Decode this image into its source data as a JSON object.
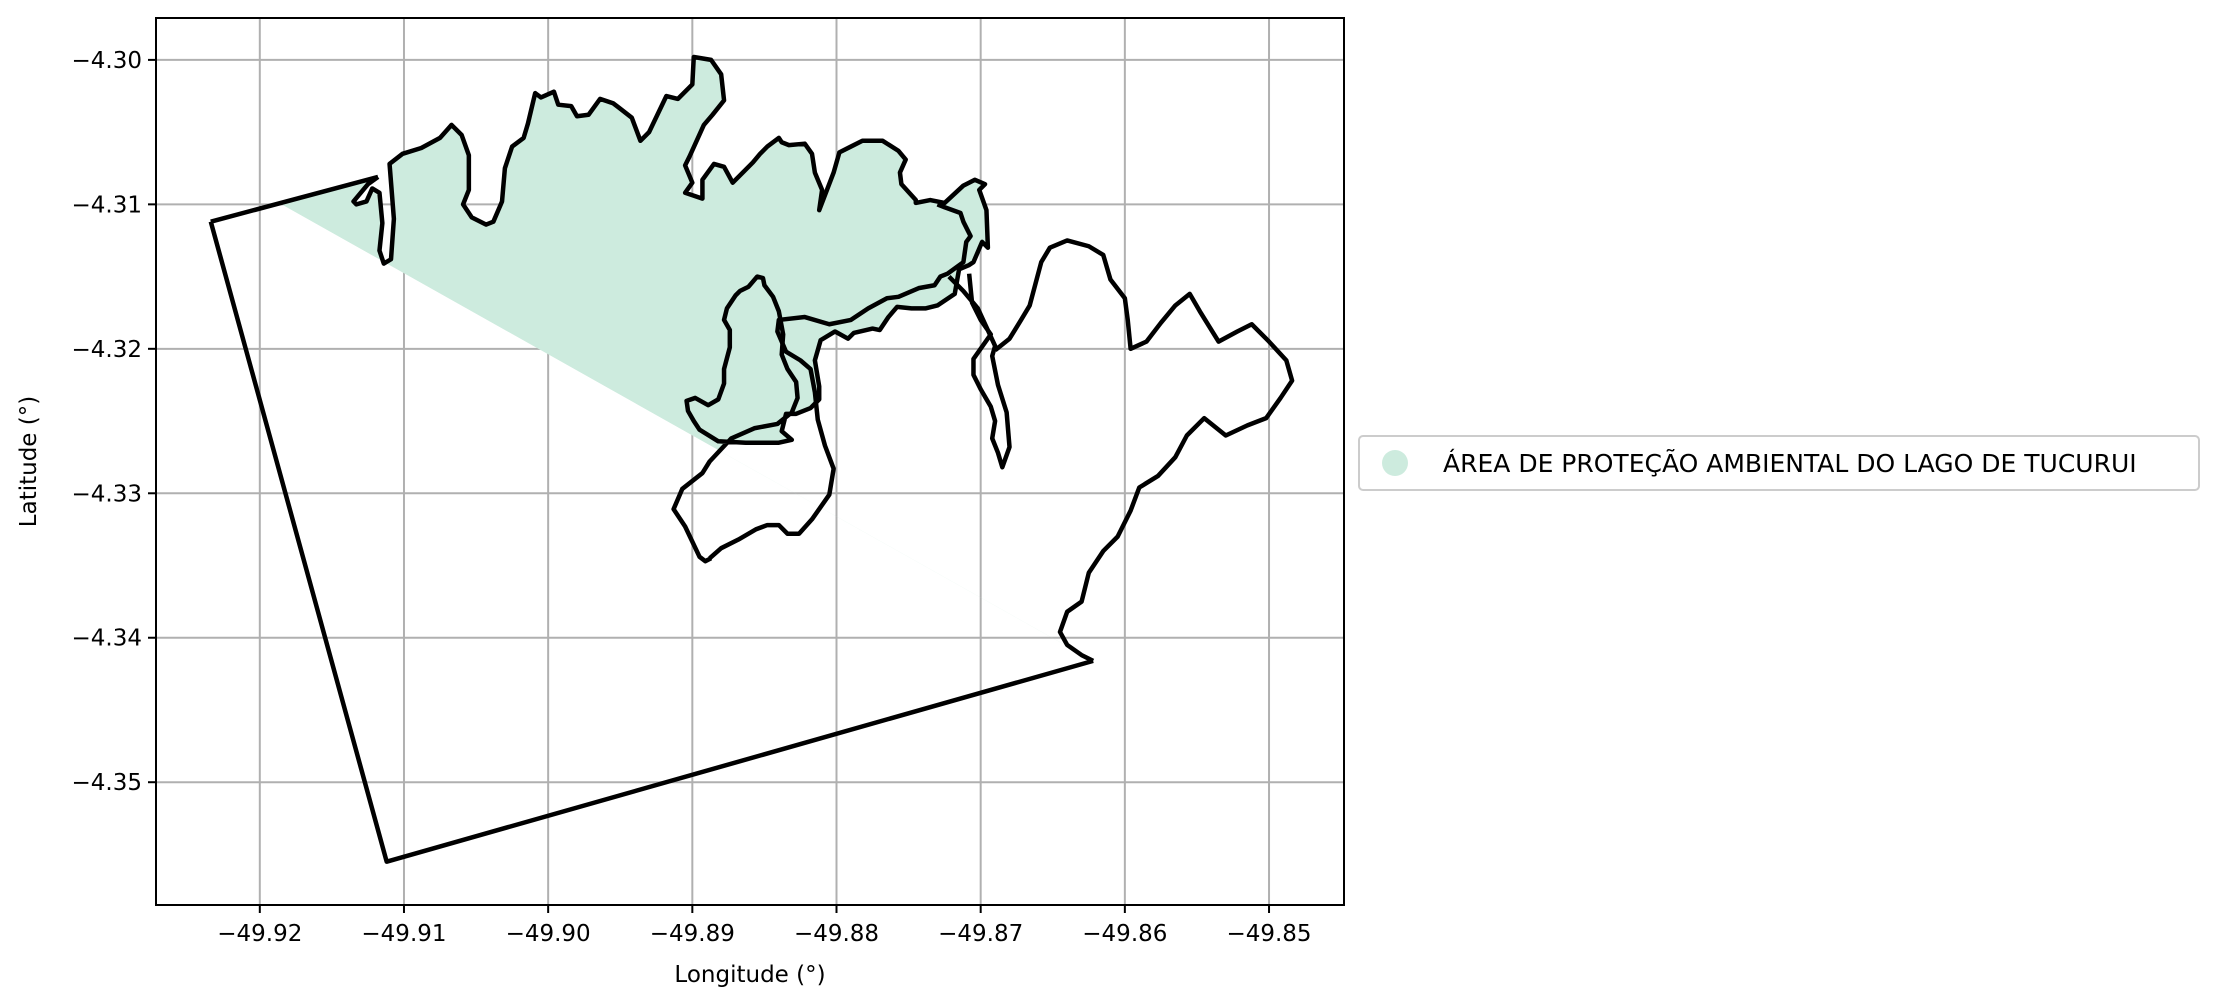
{
  "chart_data": {
    "type": "map",
    "xlabel": "Longitude (°)",
    "ylabel": "Latitude (°)",
    "xlim": [
      -49.9272,
      -49.8448
    ],
    "ylim": [
      -4.3585,
      -4.2971
    ],
    "grid": true,
    "x_ticks": [
      -49.92,
      -49.91,
      -49.9,
      -49.89,
      -49.88,
      -49.87,
      -49.86,
      -49.85
    ],
    "x_tick_labels": [
      "−49.92",
      "−49.91",
      "−49.90",
      "−49.89",
      "−49.88",
      "−49.87",
      "−49.86",
      "−49.85"
    ],
    "y_ticks": [
      -4.3,
      -4.31,
      -4.32,
      -4.33,
      -4.34,
      -4.35
    ],
    "y_tick_labels": [
      "−4.30",
      "−4.31",
      "−4.32",
      "−4.33",
      "−4.34",
      "−4.35"
    ],
    "legend": {
      "placement": "center-right-outside",
      "entries": [
        {
          "label": "ÁREA DE PROTEÇÃO AMBIENTAL DO LAGO DE TUCURUI",
          "color": "#cdebde",
          "marker": "circle"
        }
      ]
    },
    "fill_color": "#cdebde",
    "outline_color": "#000000",
    "boundary_polygon": [
      [
        -49.9234,
        -4.3112
      ],
      [
        -49.9118,
        -4.3081
      ],
      [
        -49.9112,
        -4.3555
      ],
      [
        -49.8622,
        -4.3416
      ]
    ],
    "boundary_polygon_order": [
      [
        -49.9234,
        -4.3112
      ],
      [
        -49.9118,
        -4.3081
      ],
      [
        -49.9112,
        -4.3555
      ],
      [
        -49.8622,
        -4.3416
      ]
    ],
    "protected_area_polygon": [
      [
        -49.9185,
        -4.31
      ],
      [
        -49.9118,
        -4.3081
      ],
      [
        -49.8622,
        -4.3416
      ]
    ],
    "coastline": [
      [
        -49.9118,
        -4.3081
      ],
      [
        -49.9125,
        -4.3086
      ],
      [
        -49.9135,
        -4.3098
      ],
      [
        -49.9133,
        -4.31
      ],
      [
        -49.9126,
        -4.3098
      ],
      [
        -49.9122,
        -4.3089
      ],
      [
        -49.9117,
        -4.3092
      ],
      [
        -49.9115,
        -4.3113
      ],
      [
        -49.9117,
        -4.3132
      ],
      [
        -49.9114,
        -4.3141
      ],
      [
        -49.9109,
        -4.3138
      ],
      [
        -49.9107,
        -4.311
      ],
      [
        -49.911,
        -4.3072
      ],
      [
        -49.9101,
        -4.3065
      ],
      [
        -49.9088,
        -4.3061
      ],
      [
        -49.9075,
        -4.3054
      ],
      [
        -49.9067,
        -4.3045
      ],
      [
        -49.906,
        -4.3052
      ],
      [
        -49.9055,
        -4.3066
      ],
      [
        -49.9055,
        -4.309
      ],
      [
        -49.9059,
        -4.31
      ],
      [
        -49.9053,
        -4.3109
      ],
      [
        -49.9043,
        -4.3114
      ],
      [
        -49.9038,
        -4.3112
      ],
      [
        -49.9032,
        -4.3098
      ],
      [
        -49.903,
        -4.3075
      ],
      [
        -49.9025,
        -4.306
      ],
      [
        -49.9017,
        -4.3054
      ],
      [
        -49.9014,
        -4.3044
      ],
      [
        -49.9009,
        -4.3023
      ],
      [
        -49.9005,
        -4.3026
      ],
      [
        -49.8996,
        -4.3022
      ],
      [
        -49.8993,
        -4.3031
      ],
      [
        -49.8984,
        -4.3032
      ],
      [
        -49.898,
        -4.3039
      ],
      [
        -49.8972,
        -4.3038
      ],
      [
        -49.8964,
        -4.3027
      ],
      [
        -49.8955,
        -4.303
      ],
      [
        -49.8951,
        -4.3033
      ],
      [
        -49.8942,
        -4.304
      ],
      [
        -49.8936,
        -4.3056
      ],
      [
        -49.893,
        -4.305
      ],
      [
        -49.8918,
        -4.3025
      ],
      [
        -49.891,
        -4.3027
      ],
      [
        -49.89,
        -4.3017
      ],
      [
        -49.8899,
        -4.2998
      ],
      [
        -49.8887,
        -4.3
      ],
      [
        -49.888,
        -4.301
      ],
      [
        -49.8878,
        -4.3028
      ],
      [
        -49.8886,
        -4.3038
      ],
      [
        -49.8892,
        -4.3045
      ],
      [
        -49.8902,
        -4.3067
      ],
      [
        -49.8905,
        -4.3073
      ],
      [
        -49.89,
        -4.3085
      ],
      [
        -49.8905,
        -4.3092
      ],
      [
        -49.8893,
        -4.3096
      ],
      [
        -49.8893,
        -4.3083
      ],
      [
        -49.8885,
        -4.3072
      ],
      [
        -49.8878,
        -4.3074
      ],
      [
        -49.8872,
        -4.3085
      ],
      [
        -49.8858,
        -4.3071
      ],
      [
        -49.8853,
        -4.3065
      ],
      [
        -49.8848,
        -4.306
      ],
      [
        -49.884,
        -4.3054
      ],
      [
        -49.8838,
        -4.3057
      ],
      [
        -49.8833,
        -4.3059
      ],
      [
        -49.8822,
        -4.3058
      ],
      [
        -49.8817,
        -4.3065
      ],
      [
        -49.8815,
        -4.3078
      ],
      [
        -49.881,
        -4.309
      ],
      [
        -49.8812,
        -4.3104
      ],
      [
        -49.8802,
        -4.3078
      ],
      [
        -49.8798,
        -4.3064
      ],
      [
        -49.879,
        -4.306
      ],
      [
        -49.8782,
        -4.3056
      ],
      [
        -49.8768,
        -4.3056
      ],
      [
        -49.8757,
        -4.3063
      ],
      [
        -49.8752,
        -4.3069
      ],
      [
        -49.8756,
        -4.3078
      ],
      [
        -49.8755,
        -4.3086
      ],
      [
        -49.8745,
        -4.3097
      ],
      [
        -49.8745,
        -4.3099
      ],
      [
        -49.8735,
        -4.3097
      ],
      [
        -49.8725,
        -4.3099
      ],
      [
        -49.8712,
        -4.3087
      ],
      [
        -49.8704,
        -4.3083
      ],
      [
        -49.8697,
        -4.3086
      ],
      [
        -49.8701,
        -4.309
      ],
      [
        -49.8696,
        -4.3104
      ],
      [
        -49.8695,
        -4.313
      ],
      [
        -49.8699,
        -4.3126
      ],
      [
        -49.8705,
        -4.314
      ],
      [
        -49.8708,
        -4.3142
      ],
      [
        -49.8715,
        -4.3145
      ],
      [
        -49.8718,
        -4.3162
      ],
      [
        -49.873,
        -4.317
      ],
      [
        -49.8738,
        -4.3172
      ],
      [
        -49.8748,
        -4.3172
      ],
      [
        -49.8758,
        -4.3171
      ],
      [
        -49.8764,
        -4.3178
      ],
      [
        -49.877,
        -4.3187
      ],
      [
        -49.8775,
        -4.3186
      ],
      [
        -49.8788,
        -4.3189
      ],
      [
        -49.8792,
        -4.3193
      ],
      [
        -49.8801,
        -4.3188
      ],
      [
        -49.8811,
        -4.3194
      ],
      [
        -49.8815,
        -4.3208
      ],
      [
        -49.8812,
        -4.3226
      ],
      [
        -49.8812,
        -4.3235
      ],
      [
        -49.8818,
        -4.3241
      ],
      [
        -49.8828,
        -4.3245
      ],
      [
        -49.8835,
        -4.3245
      ],
      [
        -49.8838,
        -4.3257
      ],
      [
        -49.8831,
        -4.3263
      ],
      [
        -49.884,
        -4.3265
      ],
      [
        -49.885,
        -4.3265
      ],
      [
        -49.8863,
        -4.3265
      ],
      [
        -49.8882,
        -4.3264
      ],
      [
        -49.8895,
        -4.3256
      ],
      [
        -49.8899,
        -4.325
      ],
      [
        -49.8903,
        -4.3243
      ],
      [
        -49.8904,
        -4.3236
      ],
      [
        -49.8898,
        -4.3234
      ],
      [
        -49.8889,
        -4.3239
      ],
      [
        -49.8882,
        -4.3235
      ],
      [
        -49.8878,
        -4.3224
      ],
      [
        -49.8878,
        -4.3214
      ],
      [
        -49.8874,
        -4.3199
      ],
      [
        -49.8874,
        -4.3187
      ],
      [
        -49.8878,
        -4.318
      ],
      [
        -49.8876,
        -4.3172
      ],
      [
        -49.887,
        -4.3163
      ],
      [
        -49.8867,
        -4.316
      ],
      [
        -49.8861,
        -4.3157
      ],
      [
        -49.8855,
        -4.315
      ],
      [
        -49.8851,
        -4.3151
      ],
      [
        -49.885,
        -4.3156
      ],
      [
        -49.8844,
        -4.3164
      ],
      [
        -49.884,
        -4.3174
      ],
      [
        -49.8837,
        -4.319
      ],
      [
        -49.8838,
        -4.3204
      ],
      [
        -49.8834,
        -4.3214
      ],
      [
        -49.8828,
        -4.3223
      ],
      [
        -49.8827,
        -4.3234
      ],
      [
        -49.8831,
        -4.3244
      ],
      [
        -49.8841,
        -4.3252
      ],
      [
        -49.8857,
        -4.3255
      ],
      [
        -49.8873,
        -4.3262
      ],
      [
        -49.8888,
        -4.3278
      ],
      [
        -49.8893,
        -4.3286
      ],
      [
        -49.8907,
        -4.3297
      ],
      [
        -49.8913,
        -4.3311
      ],
      [
        -49.8905,
        -4.3323
      ],
      [
        -49.8895,
        -4.3344
      ],
      [
        -49.8891,
        -4.3347
      ],
      [
        -49.8887,
        -4.3345
      ]
    ]
  }
}
